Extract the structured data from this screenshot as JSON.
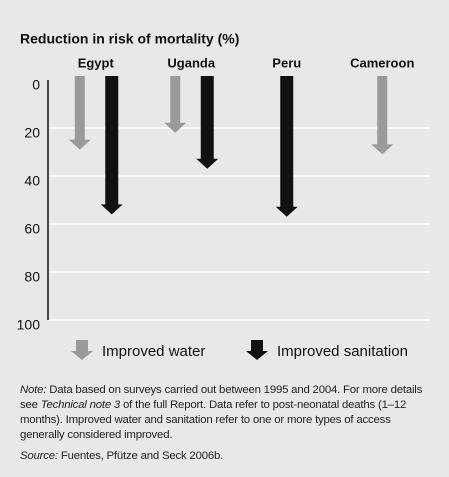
{
  "chart_data": {
    "type": "arrow",
    "title": "Reduction in risk of mortality (%)",
    "categories": [
      "Egypt",
      "Uganda",
      "Peru",
      "Cameroon"
    ],
    "series": [
      {
        "name": "Improved water",
        "color": "#9a9a9a",
        "values": [
          29,
          22,
          null,
          31
        ]
      },
      {
        "name": "Improved sanitation",
        "color": "#111111",
        "values": [
          56,
          37,
          57,
          null
        ]
      }
    ],
    "ylim": [
      0,
      100
    ],
    "yticks": [
      0,
      20,
      40,
      60,
      80,
      100
    ],
    "y_inverted": true,
    "grid": true,
    "note": {
      "label": "Note:",
      "text1": "Data based on surveys carried out between 1995 and 2004. For more details see",
      "ref": "Technical note 3",
      "text2": "of the full Report. Data refer to post-neonatal deaths (1–12 months). Improved water and sanitation refer to one or more types of access generally considered improved."
    },
    "source": {
      "label": "Source:",
      "text": "Fuentes, Pfütze and Seck 2006b."
    }
  }
}
